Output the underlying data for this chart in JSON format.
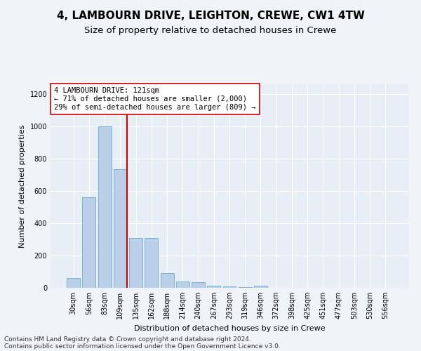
{
  "title_line1": "4, LAMBOURN DRIVE, LEIGHTON, CREWE, CW1 4TW",
  "title_line2": "Size of property relative to detached houses in Crewe",
  "xlabel": "Distribution of detached houses by size in Crewe",
  "ylabel": "Number of detached properties",
  "bar_labels": [
    "30sqm",
    "56sqm",
    "83sqm",
    "109sqm",
    "135sqm",
    "162sqm",
    "188sqm",
    "214sqm",
    "240sqm",
    "267sqm",
    "293sqm",
    "319sqm",
    "346sqm",
    "372sqm",
    "398sqm",
    "425sqm",
    "451sqm",
    "477sqm",
    "503sqm",
    "530sqm",
    "556sqm"
  ],
  "bar_values": [
    60,
    560,
    1000,
    735,
    310,
    310,
    90,
    40,
    35,
    15,
    8,
    5,
    12,
    0,
    0,
    0,
    0,
    0,
    0,
    0,
    0
  ],
  "bar_color": "#bad0e8",
  "bar_edge_color": "#6aaad4",
  "vline_color": "#cc0000",
  "annotation_text": "4 LAMBOURN DRIVE: 121sqm\n← 71% of detached houses are smaller (2,000)\n29% of semi-detached houses are larger (809) →",
  "annotation_box_color": "#ffffff",
  "annotation_box_edge": "#cc0000",
  "ylim": [
    0,
    1260
  ],
  "yticks": [
    0,
    200,
    400,
    600,
    800,
    1000,
    1200
  ],
  "background_color": "#e8eef5",
  "fig_background_color": "#f0f4f8",
  "grid_color": "#ffffff",
  "footer_line1": "Contains HM Land Registry data © Crown copyright and database right 2024.",
  "footer_line2": "Contains public sector information licensed under the Open Government Licence v3.0.",
  "title_fontsize": 11,
  "subtitle_fontsize": 9.5,
  "axis_label_fontsize": 8,
  "tick_fontsize": 7,
  "annotation_fontsize": 7.5,
  "footer_fontsize": 6.5
}
